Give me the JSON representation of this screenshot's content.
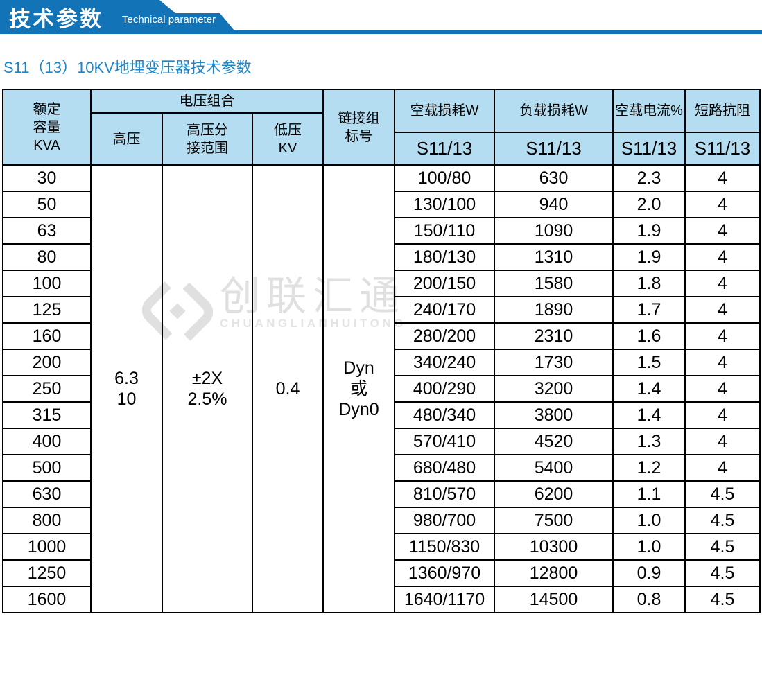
{
  "banner": {
    "title": "技术参数",
    "subtitle": "Technical parameter"
  },
  "page": {
    "title": "S11（13）10KV地埋变压器技术参数"
  },
  "watermark": {
    "logo": "diamond-logo",
    "cn": "创联汇通",
    "en": "CHUANGLIANHUITONG"
  },
  "colors": {
    "banner_blue": "#1274b7",
    "title_blue": "#1b86c8",
    "table_header_bg": "#b5ddf1",
    "table_border": "#000000",
    "watermark_gray": "#e0e0e0"
  },
  "table": {
    "header": {
      "capacity": "额定\n容量\nKVA",
      "voltage_group": "电压组合",
      "hv": "高压",
      "hv_tap": "高压分\n接范围",
      "lv": "低压\nKV",
      "vector_group": "链接组\n标号",
      "noload_loss": "空载损耗W",
      "load_loss": "负载损耗W",
      "noload_current": "空载电流%",
      "impedance": "短路抗阻",
      "series": "S11/13"
    },
    "merged": {
      "hv": "6.3\n10",
      "hv_tap": "±2X\n2.5%",
      "lv": "0.4",
      "vector_group": "Dyn\n或\nDyn0"
    },
    "rows": [
      {
        "kva": "30",
        "noload_loss": "100/80",
        "load_loss": "630",
        "noload_current": "2.3",
        "impedance": "4"
      },
      {
        "kva": "50",
        "noload_loss": "130/100",
        "load_loss": "940",
        "noload_current": "2.0",
        "impedance": "4"
      },
      {
        "kva": "63",
        "noload_loss": "150/110",
        "load_loss": "1090",
        "noload_current": "1.9",
        "impedance": "4"
      },
      {
        "kva": "80",
        "noload_loss": "180/130",
        "load_loss": "1310",
        "noload_current": "1.9",
        "impedance": "4"
      },
      {
        "kva": "100",
        "noload_loss": "200/150",
        "load_loss": "1580",
        "noload_current": "1.8",
        "impedance": "4"
      },
      {
        "kva": "125",
        "noload_loss": "240/170",
        "load_loss": "1890",
        "noload_current": "1.7",
        "impedance": "4"
      },
      {
        "kva": "160",
        "noload_loss": "280/200",
        "load_loss": "2310",
        "noload_current": "1.6",
        "impedance": "4"
      },
      {
        "kva": "200",
        "noload_loss": "340/240",
        "load_loss": "1730",
        "noload_current": "1.5",
        "impedance": "4"
      },
      {
        "kva": "250",
        "noload_loss": "400/290",
        "load_loss": "3200",
        "noload_current": "1.4",
        "impedance": "4"
      },
      {
        "kva": "315",
        "noload_loss": "480/340",
        "load_loss": "3800",
        "noload_current": "1.4",
        "impedance": "4"
      },
      {
        "kva": "400",
        "noload_loss": "570/410",
        "load_loss": "4520",
        "noload_current": "1.3",
        "impedance": "4"
      },
      {
        "kva": "500",
        "noload_loss": "680/480",
        "load_loss": "5400",
        "noload_current": "1.2",
        "impedance": "4"
      },
      {
        "kva": "630",
        "noload_loss": "810/570",
        "load_loss": "6200",
        "noload_current": "1.1",
        "impedance": "4.5"
      },
      {
        "kva": "800",
        "noload_loss": "980/700",
        "load_loss": "7500",
        "noload_current": "1.0",
        "impedance": "4.5"
      },
      {
        "kva": "1000",
        "noload_loss": "1150/830",
        "load_loss": "10300",
        "noload_current": "1.0",
        "impedance": "4.5"
      },
      {
        "kva": "1250",
        "noload_loss": "1360/970",
        "load_loss": "12800",
        "noload_current": "0.9",
        "impedance": "4.5"
      },
      {
        "kva": "1600",
        "noload_loss": "1640/1170",
        "load_loss": "14500",
        "noload_current": "0.8",
        "impedance": "4.5"
      }
    ]
  }
}
